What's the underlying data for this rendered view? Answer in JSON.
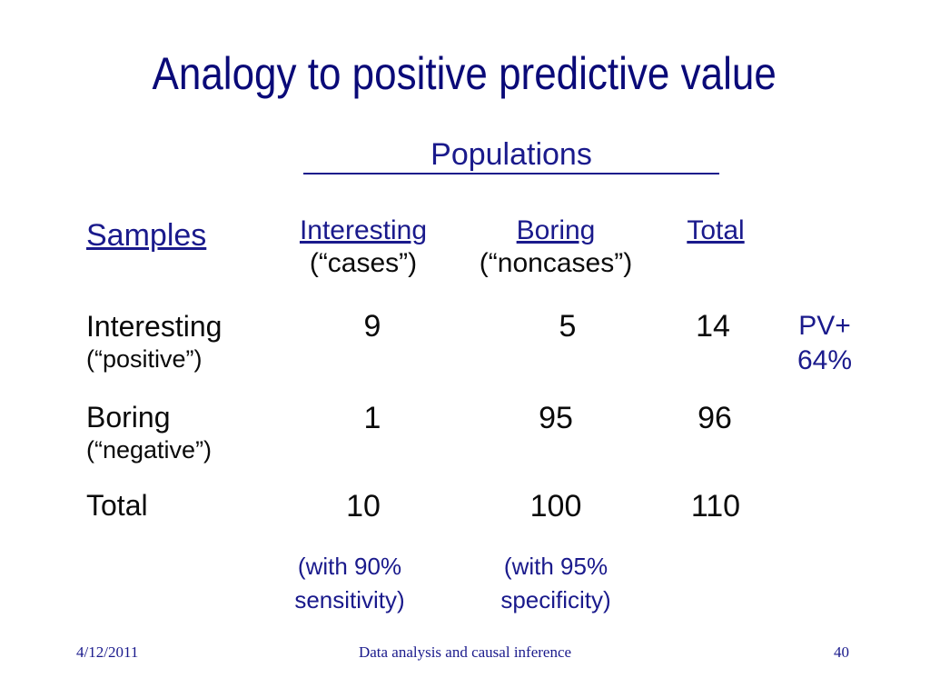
{
  "slide": {
    "title": "Analogy to positive predictive value",
    "populations_header": "Populations",
    "samples_label": "Samples",
    "columns": [
      {
        "label": "Interesting",
        "sub": "(“cases”)"
      },
      {
        "label": "Boring",
        "sub": "(“noncases”)"
      },
      {
        "label": "Total",
        "sub": ""
      }
    ],
    "rows": [
      {
        "label": "Interesting",
        "sub": "(“positive”)",
        "values": [
          "9",
          "5",
          "14"
        ]
      },
      {
        "label": "Boring",
        "sub": "(“negative”)",
        "values": [
          "1",
          "95",
          "96"
        ]
      },
      {
        "label": "Total",
        "sub": "",
        "values": [
          "10",
          "100",
          "110"
        ]
      }
    ],
    "pv": {
      "label": "PV+",
      "value": "64%"
    },
    "notes": [
      {
        "line1": "(with 90%",
        "line2": "sensitivity)"
      },
      {
        "line1": "(with 95%",
        "line2": "specificity)"
      }
    ]
  },
  "footer": {
    "date": "4/12/2011",
    "center": "Data analysis and causal inference",
    "page": "40"
  }
}
